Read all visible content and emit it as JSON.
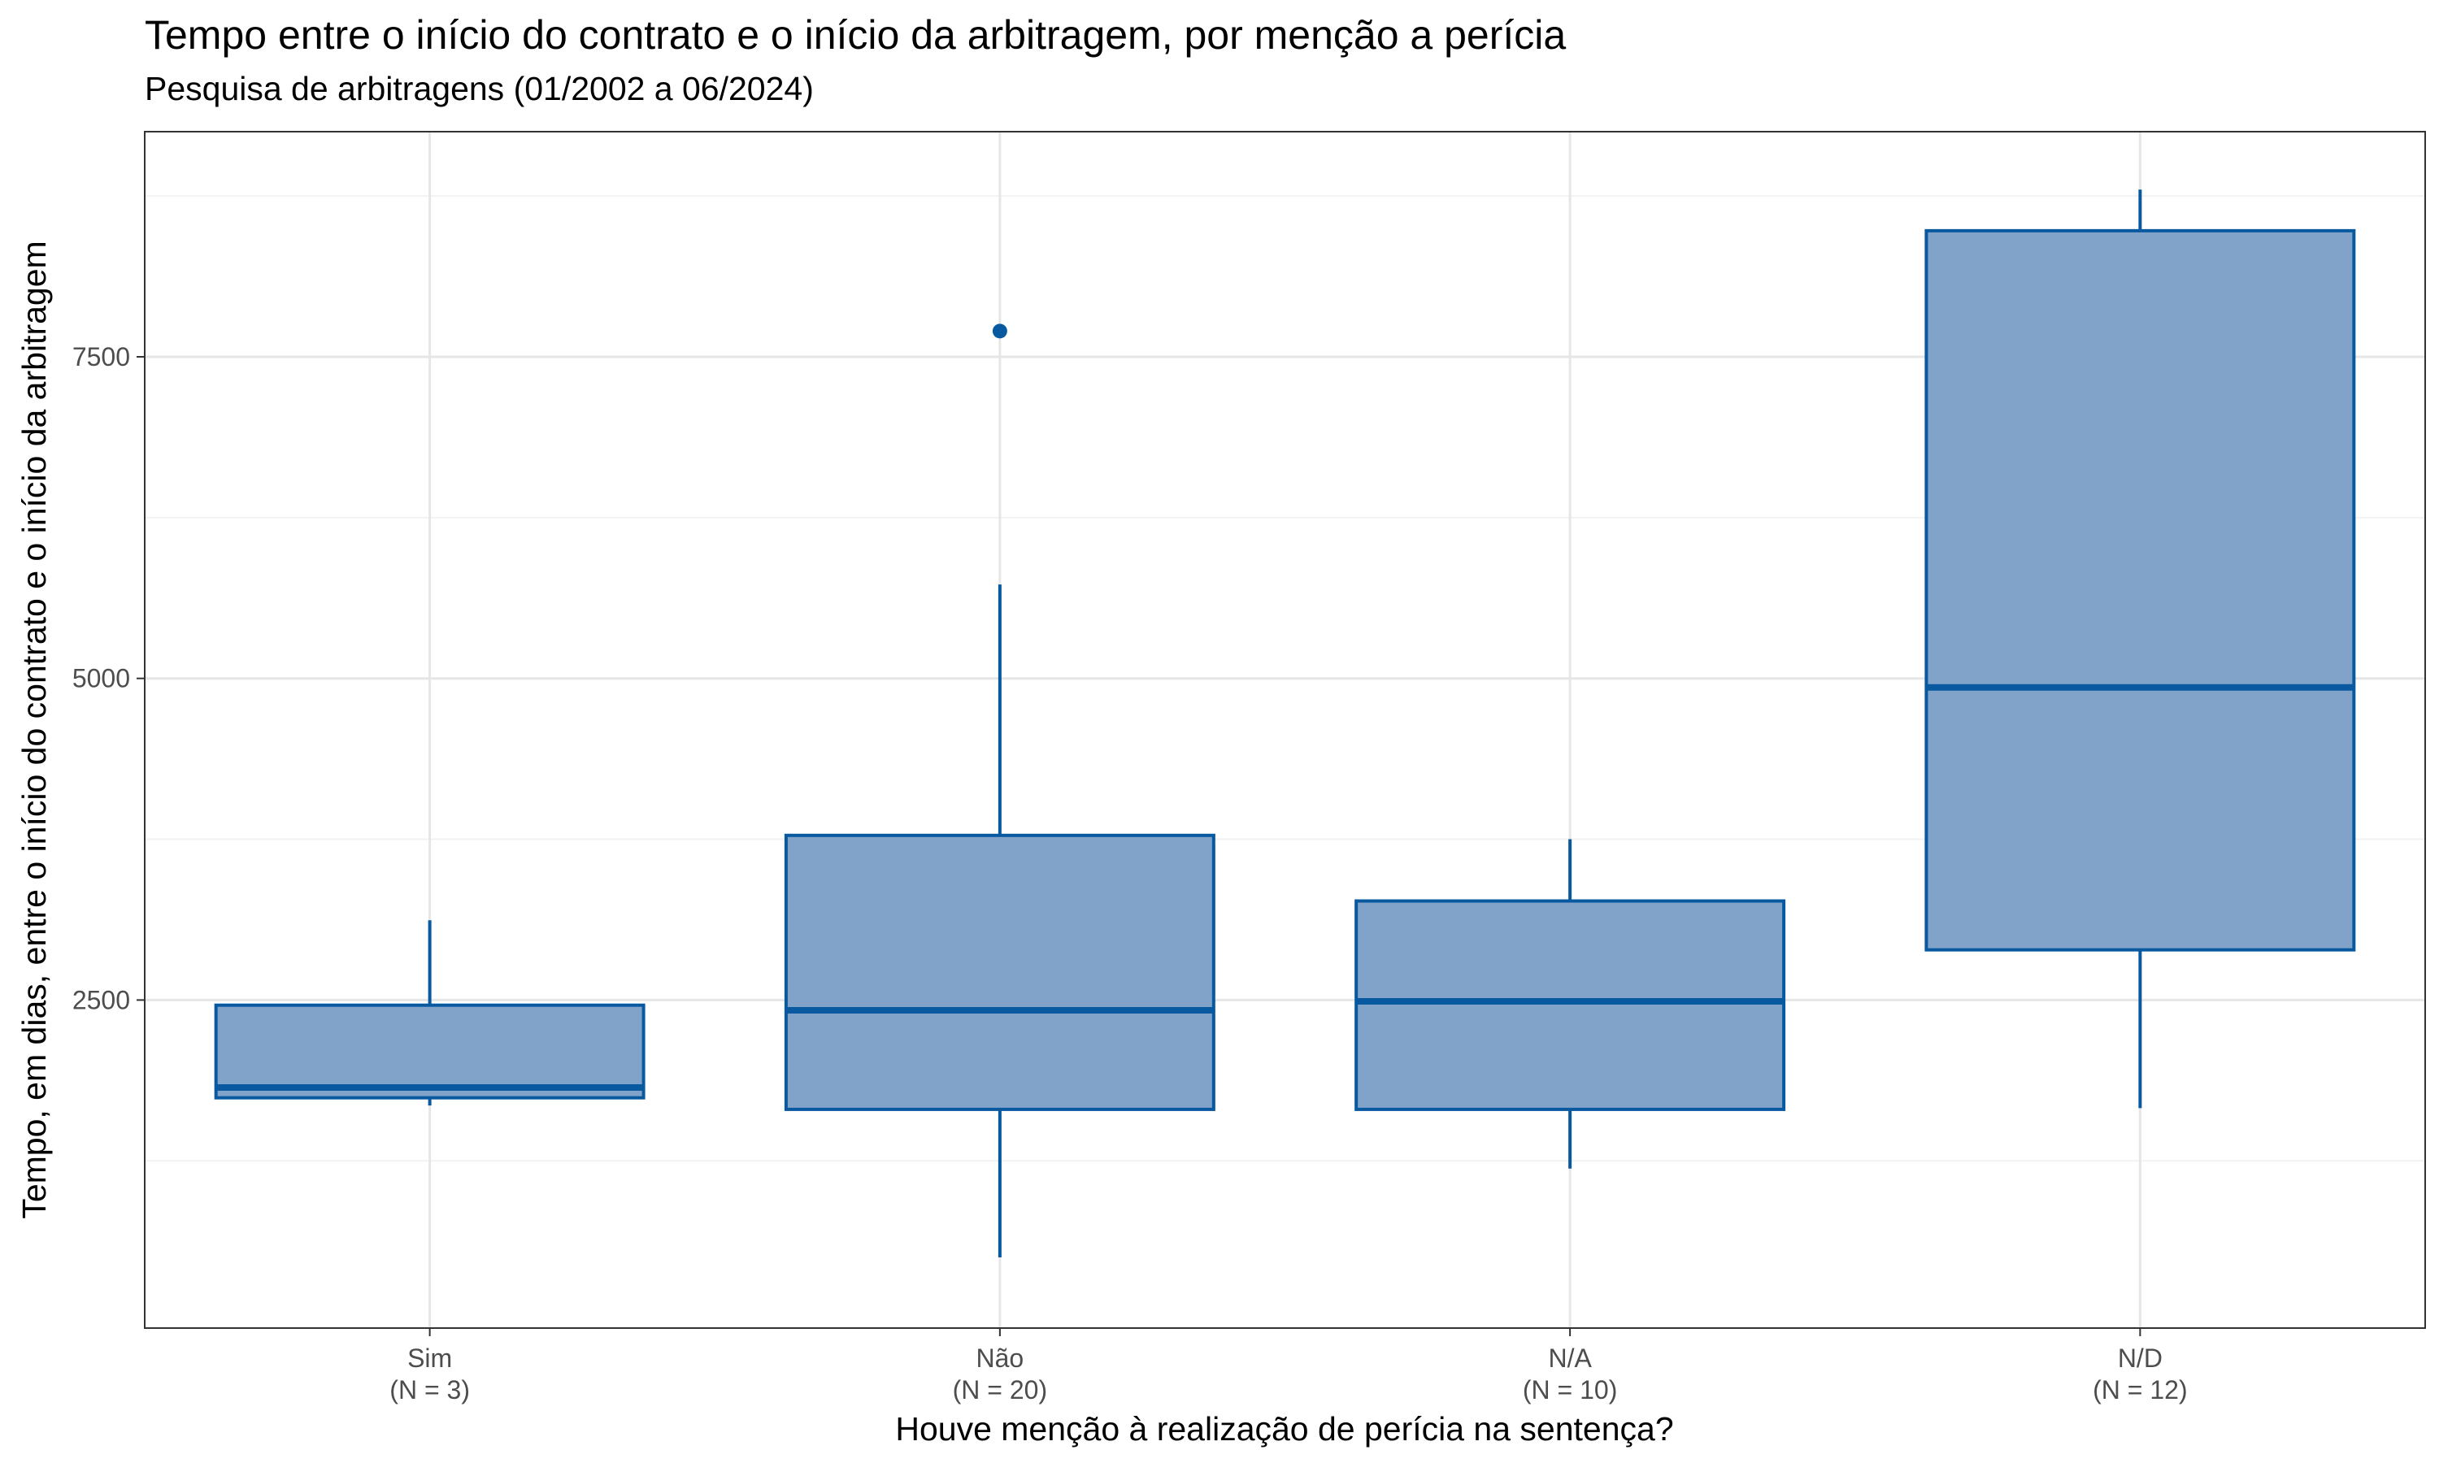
{
  "chart_data": {
    "type": "boxplot",
    "title": "Tempo entre o início do contrato e o início da arbitragem, por menção a perícia",
    "subtitle": "Pesquisa de arbitragens (01/2002 a 06/2024)",
    "xlabel": "Houve menção à realização de perícia na sentença?",
    "ylabel": "Tempo, em dias, entre o início do contrato e o início da arbitragem",
    "ylim": [
      -50,
      9250
    ],
    "y_ticks": [
      2500,
      5000,
      7500
    ],
    "y_tick_labels": [
      "2500",
      "5000",
      "7500"
    ],
    "grid": true,
    "colors": {
      "fill": "#81A3CA",
      "stroke": "#08599F",
      "grid_major": "#E6E6E6",
      "grid_minor": "#F2F2F2",
      "panel_border": "#333333"
    },
    "categories": [
      "Sim",
      "Não",
      "N/A",
      "N/D"
    ],
    "category_counts": [
      "(N = 3)",
      "(N = 20)",
      "(N = 10)",
      "(N = 12)"
    ],
    "boxes": [
      {
        "category": "Sim",
        "whisker_low": 1680,
        "q1": 1740,
        "median": 1820,
        "q3": 2460,
        "whisker_high": 3120,
        "outliers": []
      },
      {
        "category": "Não",
        "whisker_low": 500,
        "q1": 1650,
        "median": 2420,
        "q3": 3780,
        "whisker_high": 5730,
        "outliers": [
          7700
        ]
      },
      {
        "category": "N/A",
        "whisker_low": 1190,
        "q1": 1650,
        "median": 2490,
        "q3": 3270,
        "whisker_high": 3750,
        "outliers": []
      },
      {
        "category": "N/D",
        "whisker_low": 1660,
        "q1": 2890,
        "median": 4930,
        "q3": 8480,
        "whisker_high": 8800,
        "outliers": []
      }
    ]
  }
}
